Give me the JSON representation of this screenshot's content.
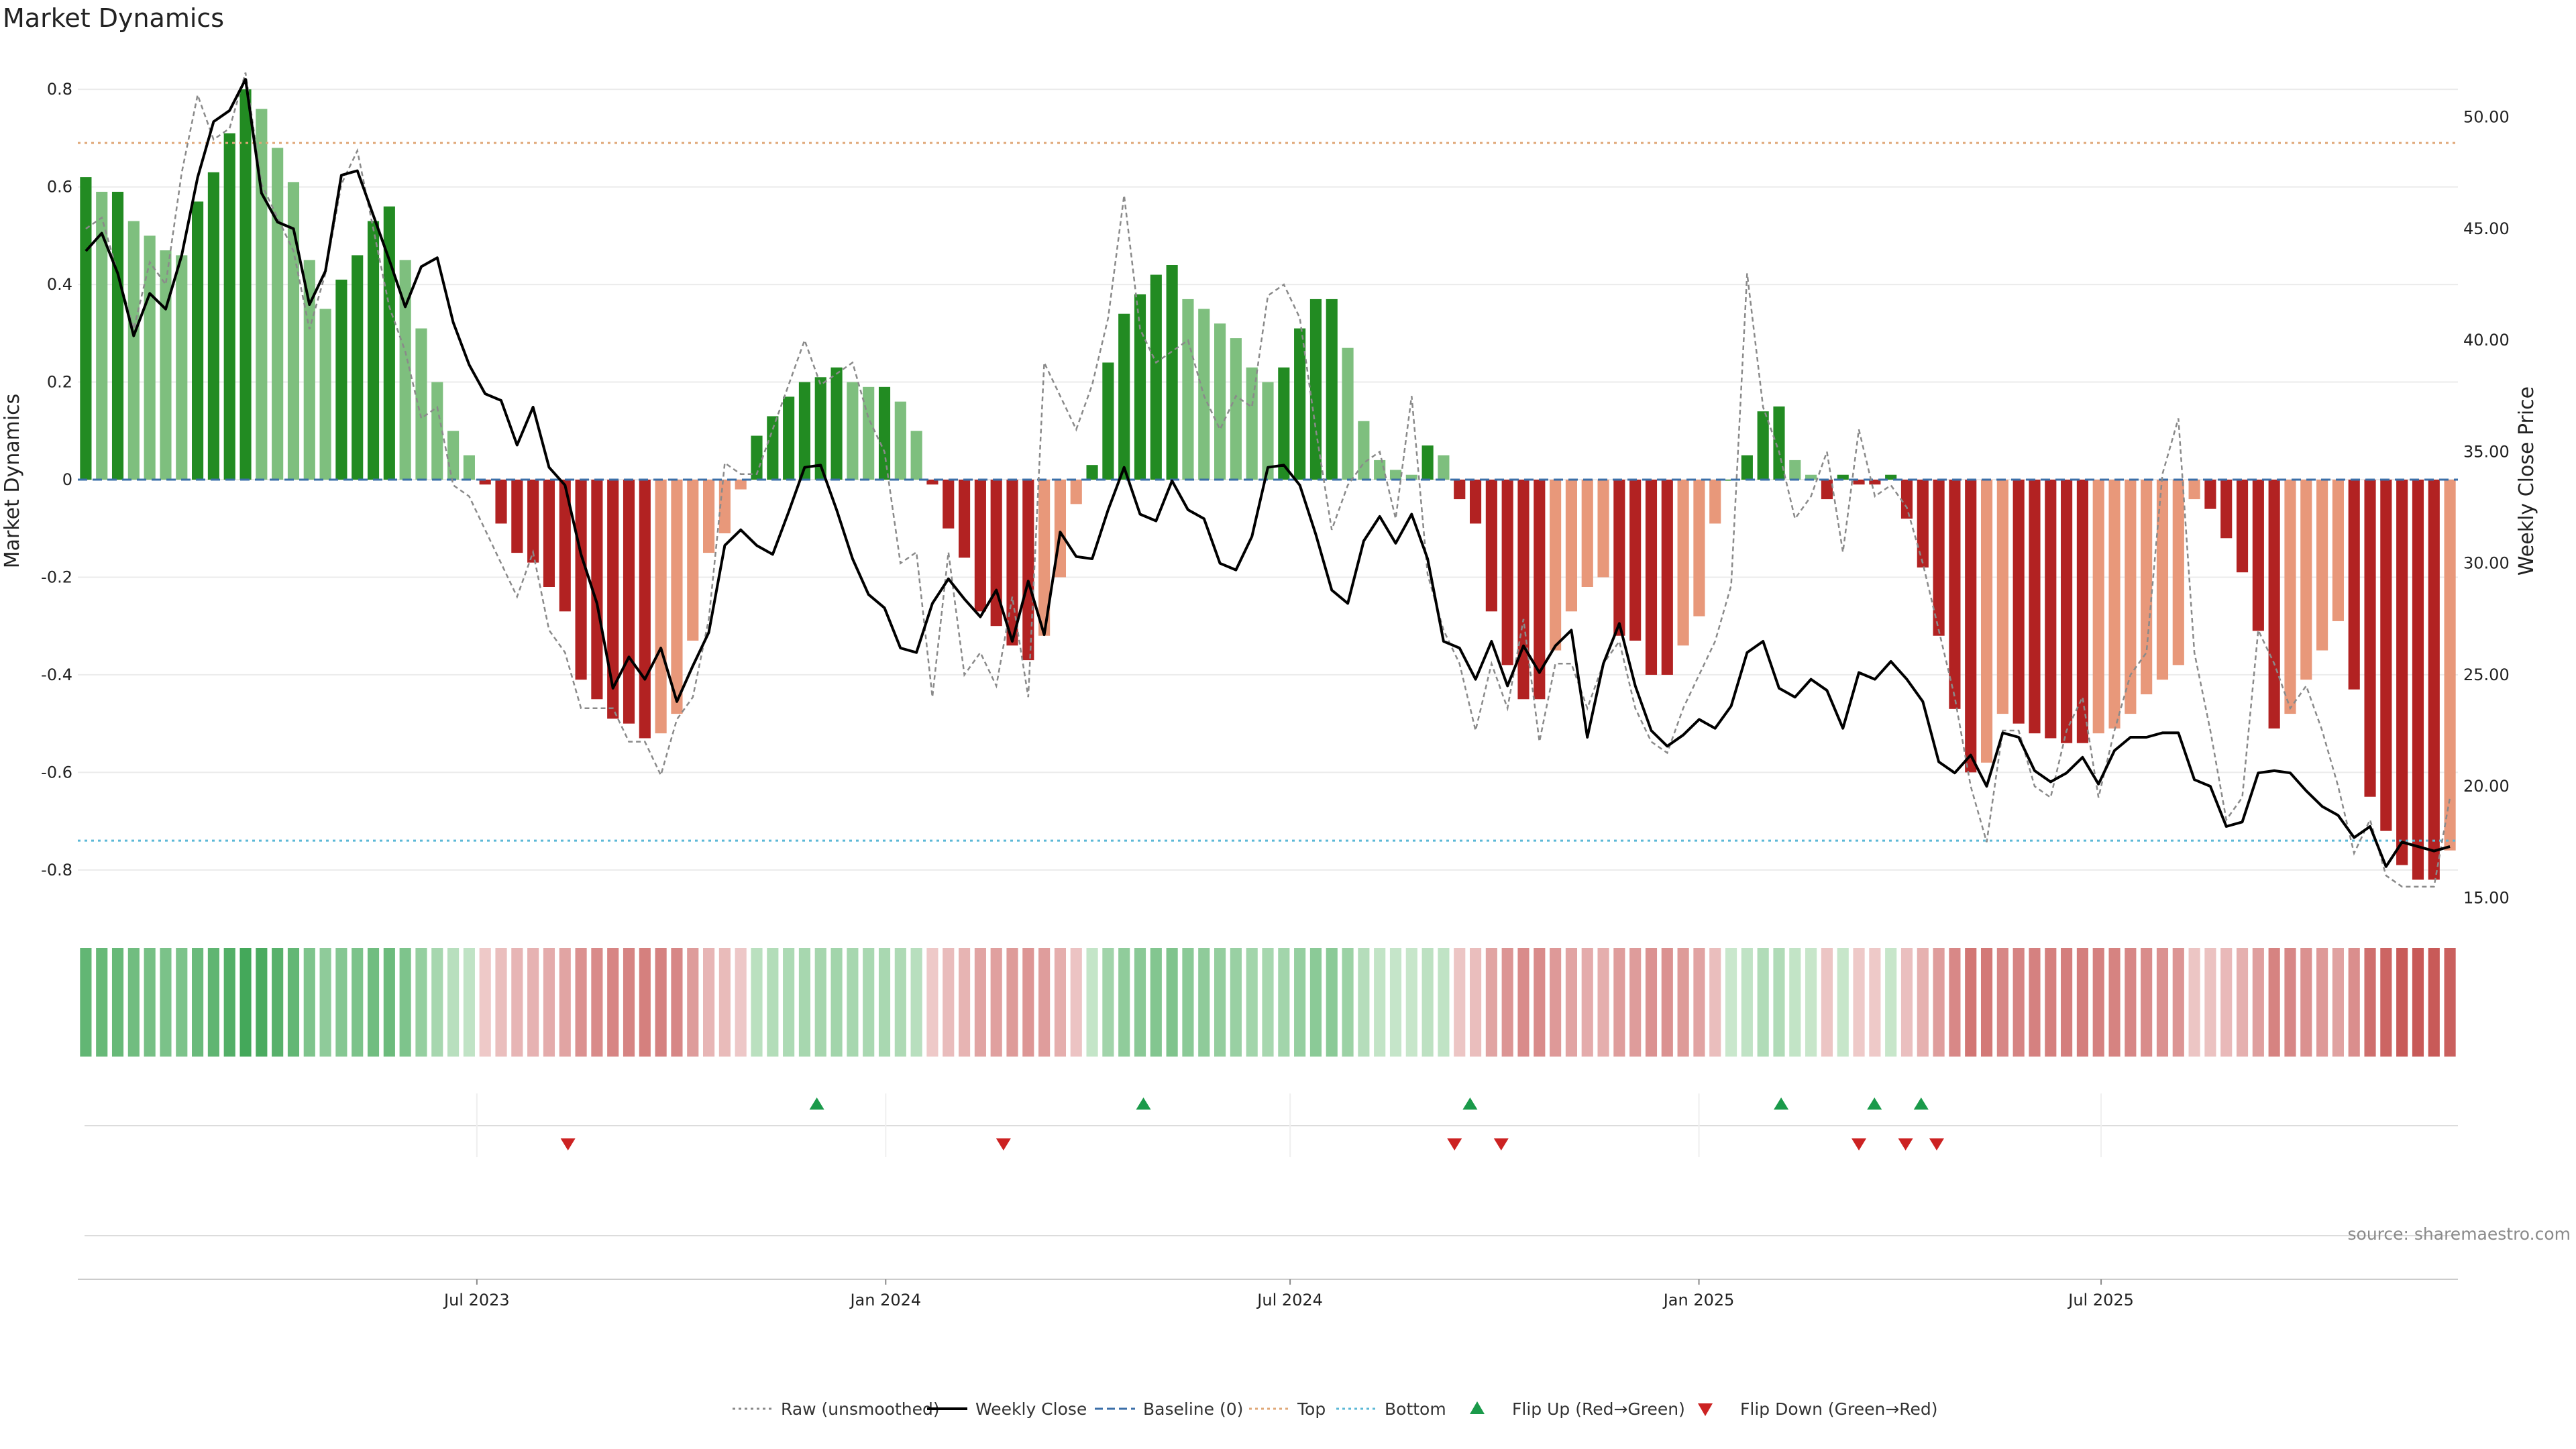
{
  "chart_data": {
    "type": "bar",
    "title": "Market Dynamics",
    "ylabel": "Market Dynamics",
    "y2label": "Weekly Close Price",
    "ylim": [
      -0.88,
      0.88
    ],
    "y2lim": [
      14.5,
      53.0
    ],
    "yticks": [
      0.8,
      0.6,
      0.4,
      0.2,
      0,
      -0.2,
      -0.4,
      -0.6,
      -0.8
    ],
    "ytick_labels": [
      "0.8",
      "0.6",
      "0.4",
      "0.2",
      "0",
      "-0.2",
      "-0.4",
      "-0.6",
      "-0.8"
    ],
    "y2ticks": [
      50,
      45,
      40,
      35,
      30,
      25,
      20,
      15
    ],
    "y2tick_labels": [
      "50.00",
      "45.00",
      "40.00",
      "35.00",
      "30.00",
      "25.00",
      "20.00",
      "15.00"
    ],
    "x_start": "2023-01-06",
    "x_end": "2025-12-05",
    "xticks": [
      "2023-07-01",
      "2024-01-01",
      "2024-07-01",
      "2025-01-01",
      "2025-07-01"
    ],
    "xtick_labels": [
      "Jul 2023",
      "Jan 2024",
      "Jul 2024",
      "Jan 2025",
      "Jul 2025"
    ],
    "top_threshold": 0.69,
    "bottom_threshold": -0.74,
    "baseline": 0,
    "grid": true,
    "legend_position": "bottom-center",
    "colors": {
      "up_strong": "#228b22",
      "up_weak": "#7ebf7e",
      "down_strong": "#b22222",
      "down_weak": "#e8987a",
      "close": "#000000",
      "raw": "#8a8a8a",
      "baseline": "#3b6fa8",
      "top": "#e0a878",
      "bottom": "#5bb8d6",
      "flip_up": "#1a9a4a",
      "flip_down": "#cc2222"
    },
    "momentum": [
      0.62,
      0.59,
      0.59,
      0.53,
      0.5,
      0.47,
      0.46,
      0.57,
      0.63,
      0.71,
      0.8,
      0.76,
      0.68,
      0.61,
      0.45,
      0.35,
      0.41,
      0.46,
      0.53,
      0.56,
      0.45,
      0.31,
      0.2,
      0.1,
      0.05,
      -0.01,
      -0.09,
      -0.15,
      -0.17,
      -0.22,
      -0.27,
      -0.41,
      -0.45,
      -0.49,
      -0.5,
      -0.53,
      -0.52,
      -0.48,
      -0.33,
      -0.15,
      -0.11,
      -0.02,
      0.09,
      0.13,
      0.17,
      0.2,
      0.21,
      0.23,
      0.2,
      0.19,
      0.19,
      0.16,
      0.1,
      -0.01,
      -0.1,
      -0.16,
      -0.27,
      -0.3,
      -0.34,
      -0.37,
      -0.32,
      -0.2,
      -0.05,
      0.03,
      0.24,
      0.34,
      0.38,
      0.42,
      0.44,
      0.37,
      0.35,
      0.32,
      0.29,
      0.23,
      0.2,
      0.23,
      0.31,
      0.37,
      0.37,
      0.27,
      0.12,
      0.04,
      0.02,
      0.01,
      0.07,
      0.05,
      -0.04,
      -0.09,
      -0.27,
      -0.38,
      -0.45,
      -0.45,
      -0.35,
      -0.27,
      -0.22,
      -0.2,
      -0.32,
      -0.33,
      -0.4,
      -0.4,
      -0.34,
      -0.28,
      -0.09,
      0.0,
      0.05,
      0.14,
      0.15,
      0.04,
      0.01,
      -0.04,
      0.01,
      -0.01,
      -0.01,
      0.01,
      -0.08,
      -0.18,
      -0.32,
      -0.47,
      -0.6,
      -0.58,
      -0.48,
      -0.5,
      -0.52,
      -0.53,
      -0.54,
      -0.54,
      -0.52,
      -0.51,
      -0.48,
      -0.44,
      -0.41,
      -0.38,
      -0.04,
      -0.06,
      -0.12,
      -0.19,
      -0.31,
      -0.51,
      -0.48,
      -0.41,
      -0.35,
      -0.29,
      -0.43,
      -0.65,
      -0.72,
      -0.79,
      -0.82,
      -0.82,
      -0.76
    ],
    "weekly_close": [
      44.0,
      44.8,
      43.0,
      40.2,
      42.1,
      41.4,
      43.8,
      47.3,
      49.8,
      50.3,
      51.7,
      46.6,
      45.3,
      45.0,
      41.6,
      43.1,
      47.4,
      47.6,
      45.6,
      43.6,
      41.5,
      43.3,
      43.7,
      40.8,
      38.9,
      37.6,
      37.3,
      35.3,
      37.0,
      34.3,
      33.5,
      30.4,
      28.2,
      24.4,
      25.8,
      24.8,
      26.2,
      23.8,
      25.4,
      26.9,
      30.8,
      31.5,
      30.8,
      30.4,
      32.3,
      34.3,
      34.4,
      32.4,
      30.2,
      28.6,
      28.0,
      26.2,
      26.0,
      28.2,
      29.3,
      28.4,
      27.6,
      28.8,
      26.5,
      29.2,
      26.8,
      31.4,
      30.3,
      30.2,
      32.4,
      34.3,
      32.2,
      31.9,
      33.7,
      32.4,
      32.0,
      30.0,
      29.7,
      31.2,
      34.3,
      34.4,
      33.5,
      31.3,
      28.8,
      28.2,
      31.0,
      32.1,
      30.9,
      32.2,
      30.2,
      26.5,
      26.2,
      24.8,
      26.5,
      24.5,
      26.3,
      25.1,
      26.3,
      27.0,
      22.2,
      25.5,
      27.3,
      24.5,
      22.5,
      21.8,
      22.3,
      23.0,
      22.6,
      23.6,
      26.0,
      26.5,
      24.4,
      24.0,
      24.8,
      24.3,
      22.6,
      25.1,
      24.8,
      25.6,
      24.8,
      23.8,
      21.1,
      20.6,
      21.4,
      20.0,
      22.4,
      22.2,
      20.7,
      20.2,
      20.6,
      21.3,
      20.1,
      21.6,
      22.2,
      22.2,
      22.4,
      22.4,
      20.3,
      20.0,
      18.2,
      18.4,
      20.6,
      20.7,
      20.6,
      19.8,
      19.1,
      18.7,
      17.7,
      18.2,
      16.4,
      17.5,
      17.3,
      17.1,
      17.3
    ],
    "raw": [
      45.0,
      45.5,
      43.0,
      40.5,
      43.5,
      42.5,
      47.5,
      51.0,
      49.0,
      49.5,
      52.0,
      47.0,
      45.5,
      44.0,
      40.5,
      43.0,
      47.0,
      48.5,
      45.0,
      41.5,
      39.5,
      36.5,
      37.0,
      33.5,
      33.0,
      31.5,
      30.0,
      28.5,
      30.5,
      27.0,
      26.0,
      23.5,
      23.5,
      23.5,
      22.0,
      22.0,
      20.5,
      23.0,
      24.0,
      27.5,
      34.5,
      34.0,
      34.0,
      36.0,
      38.0,
      40.0,
      38.0,
      38.5,
      39.0,
      36.5,
      35.0,
      30.0,
      30.5,
      24.0,
      30.5,
      25.0,
      26.0,
      24.5,
      28.5,
      24.0,
      39.0,
      37.5,
      36.0,
      38.0,
      41.0,
      46.5,
      40.5,
      39.0,
      39.5,
      40.0,
      37.5,
      36.0,
      37.5,
      37.0,
      42.0,
      42.5,
      41.0,
      36.0,
      31.5,
      33.5,
      34.5,
      35.0,
      32.0,
      37.5,
      29.5,
      27.0,
      25.5,
      22.5,
      25.5,
      23.5,
      27.5,
      22.0,
      25.5,
      25.5,
      23.5,
      25.5,
      26.5,
      23.5,
      22.0,
      21.5,
      23.5,
      25.0,
      26.5,
      29.0,
      43.0,
      37.0,
      35.0,
      32.0,
      33.0,
      35.0,
      30.5,
      36.0,
      33.0,
      33.5,
      32.5,
      30.0,
      27.0,
      24.0,
      20.0,
      17.5,
      22.5,
      22.5,
      20.0,
      19.5,
      22.5,
      24.0,
      19.5,
      22.5,
      25.0,
      26.0,
      34.0,
      36.5,
      26.0,
      22.5,
      18.5,
      19.5,
      27.0,
      25.5,
      23.5,
      24.5,
      22.5,
      20.0,
      17.0,
      18.5,
      16.0,
      15.5,
      15.5,
      15.5,
      19.5
    ],
    "flip_up_dates": [
      "2023-12-01",
      "2024-04-26",
      "2024-09-20",
      "2025-02-07",
      "2025-03-21",
      "2025-04-11"
    ],
    "flip_down_dates": [
      "2023-08-11",
      "2024-02-23",
      "2024-09-13",
      "2024-10-04",
      "2025-03-14",
      "2025-04-04",
      "2025-04-18"
    ],
    "legend": [
      {
        "name": "Raw (unsmoothed)",
        "symbol": "dotted-line",
        "color": "#8a8a8a"
      },
      {
        "name": "Weekly Close",
        "symbol": "solid-line",
        "color": "#000000"
      },
      {
        "name": "Baseline (0)",
        "symbol": "dashed-line",
        "color": "#3b6fa8"
      },
      {
        "name": "Top",
        "symbol": "dotted-line",
        "color": "#e0a878"
      },
      {
        "name": "Bottom",
        "symbol": "dotted-line",
        "color": "#5bb8d6"
      },
      {
        "name": "Flip Up (Red→Green)",
        "symbol": "triangle-up",
        "color": "#1a9a4a"
      },
      {
        "name": "Flip Down (Green→Red)",
        "symbol": "triangle-down",
        "color": "#cc2222"
      }
    ]
  },
  "source": "source: sharemaestro.com"
}
